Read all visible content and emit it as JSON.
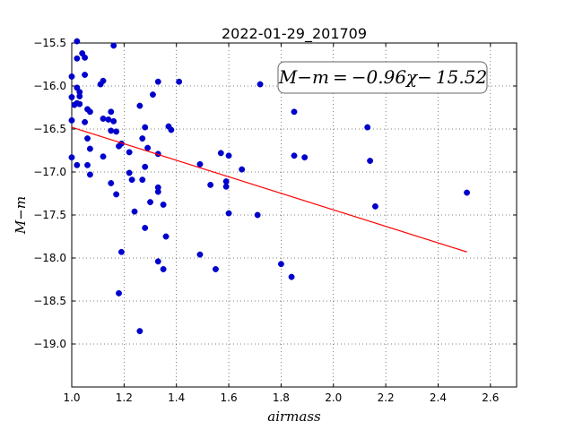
{
  "chart_data": {
    "type": "scatter",
    "title": "2022-01-29_201709",
    "xlabel": "airmass",
    "ylabel": "M−m",
    "xlim": [
      1.0,
      2.7
    ],
    "ylim": [
      -15.5,
      -19.5
    ],
    "y_inverted": true,
    "grid": true,
    "x_ticks": [
      "1.0",
      "1.2",
      "1.4",
      "1.6",
      "1.8",
      "2.0",
      "2.2",
      "2.4",
      "2.6"
    ],
    "y_ticks": [
      "−15.5",
      "−16.0",
      "−16.5",
      "−17.0",
      "−17.5",
      "−18.0",
      "−18.5",
      "−19.0"
    ],
    "annotation": "M−m = −0.96χ− 15.52",
    "fit": {
      "slope": -0.96,
      "intercept": -15.52,
      "x_range": [
        1.0,
        2.51
      ],
      "color": "#ff0000"
    },
    "point_color": "#0000cc",
    "points": [
      [
        1.02,
        -15.48
      ],
      [
        1.0,
        -15.89
      ],
      [
        1.0,
        -16.13
      ],
      [
        1.0,
        -16.4
      ],
      [
        1.0,
        -16.83
      ],
      [
        1.01,
        -16.22
      ],
      [
        1.02,
        -15.68
      ],
      [
        1.02,
        -16.02
      ],
      [
        1.02,
        -16.2
      ],
      [
        1.02,
        -16.92
      ],
      [
        1.03,
        -16.07
      ],
      [
        1.03,
        -16.21
      ],
      [
        1.04,
        -15.62
      ],
      [
        1.05,
        -15.67
      ],
      [
        1.05,
        -15.87
      ],
      [
        1.05,
        -16.42
      ],
      [
        1.06,
        -16.27
      ],
      [
        1.06,
        -16.61
      ],
      [
        1.06,
        -16.92
      ],
      [
        1.07,
        -16.3
      ],
      [
        1.07,
        -16.73
      ],
      [
        1.07,
        -17.03
      ],
      [
        1.03,
        -16.12
      ],
      [
        1.11,
        -15.98
      ],
      [
        1.12,
        -15.94
      ],
      [
        1.12,
        -16.38
      ],
      [
        1.12,
        -16.82
      ],
      [
        1.14,
        -16.39
      ],
      [
        1.15,
        -16.3
      ],
      [
        1.15,
        -16.52
      ],
      [
        1.15,
        -17.13
      ],
      [
        1.16,
        -15.53
      ],
      [
        1.16,
        -16.41
      ],
      [
        1.17,
        -16.53
      ],
      [
        1.17,
        -17.26
      ],
      [
        1.18,
        -16.7
      ],
      [
        1.19,
        -16.67
      ],
      [
        1.18,
        -18.41
      ],
      [
        1.19,
        -17.93
      ],
      [
        1.22,
        -16.77
      ],
      [
        1.22,
        -17.01
      ],
      [
        1.23,
        -17.09
      ],
      [
        1.24,
        -17.46
      ],
      [
        1.26,
        -16.23
      ],
      [
        1.26,
        -18.85
      ],
      [
        1.27,
        -16.61
      ],
      [
        1.27,
        -17.09
      ],
      [
        1.28,
        -16.48
      ],
      [
        1.28,
        -16.94
      ],
      [
        1.29,
        -16.72
      ],
      [
        1.28,
        -17.65
      ],
      [
        1.3,
        -17.35
      ],
      [
        1.31,
        -16.1
      ],
      [
        1.33,
        -15.95
      ],
      [
        1.33,
        -16.79
      ],
      [
        1.33,
        -17.18
      ],
      [
        1.33,
        -17.23
      ],
      [
        1.33,
        -18.04
      ],
      [
        1.35,
        -17.38
      ],
      [
        1.35,
        -18.13
      ],
      [
        1.36,
        -17.75
      ],
      [
        1.37,
        -16.47
      ],
      [
        1.38,
        -16.51
      ],
      [
        1.41,
        -15.95
      ],
      [
        1.49,
        -16.91
      ],
      [
        1.49,
        -17.96
      ],
      [
        1.53,
        -17.15
      ],
      [
        1.55,
        -18.13
      ],
      [
        1.57,
        -16.78
      ],
      [
        1.59,
        -17.17
      ],
      [
        1.59,
        -17.11
      ],
      [
        1.6,
        -16.81
      ],
      [
        1.6,
        -17.48
      ],
      [
        1.65,
        -16.97
      ],
      [
        1.71,
        -17.5
      ],
      [
        1.72,
        -15.98
      ],
      [
        1.8,
        -18.07
      ],
      [
        1.84,
        -18.22
      ],
      [
        1.85,
        -16.81
      ],
      [
        1.85,
        -16.3
      ],
      [
        1.89,
        -16.83
      ],
      [
        2.13,
        -16.48
      ],
      [
        2.14,
        -16.87
      ],
      [
        2.16,
        -17.4
      ],
      [
        2.51,
        -17.24
      ]
    ]
  }
}
